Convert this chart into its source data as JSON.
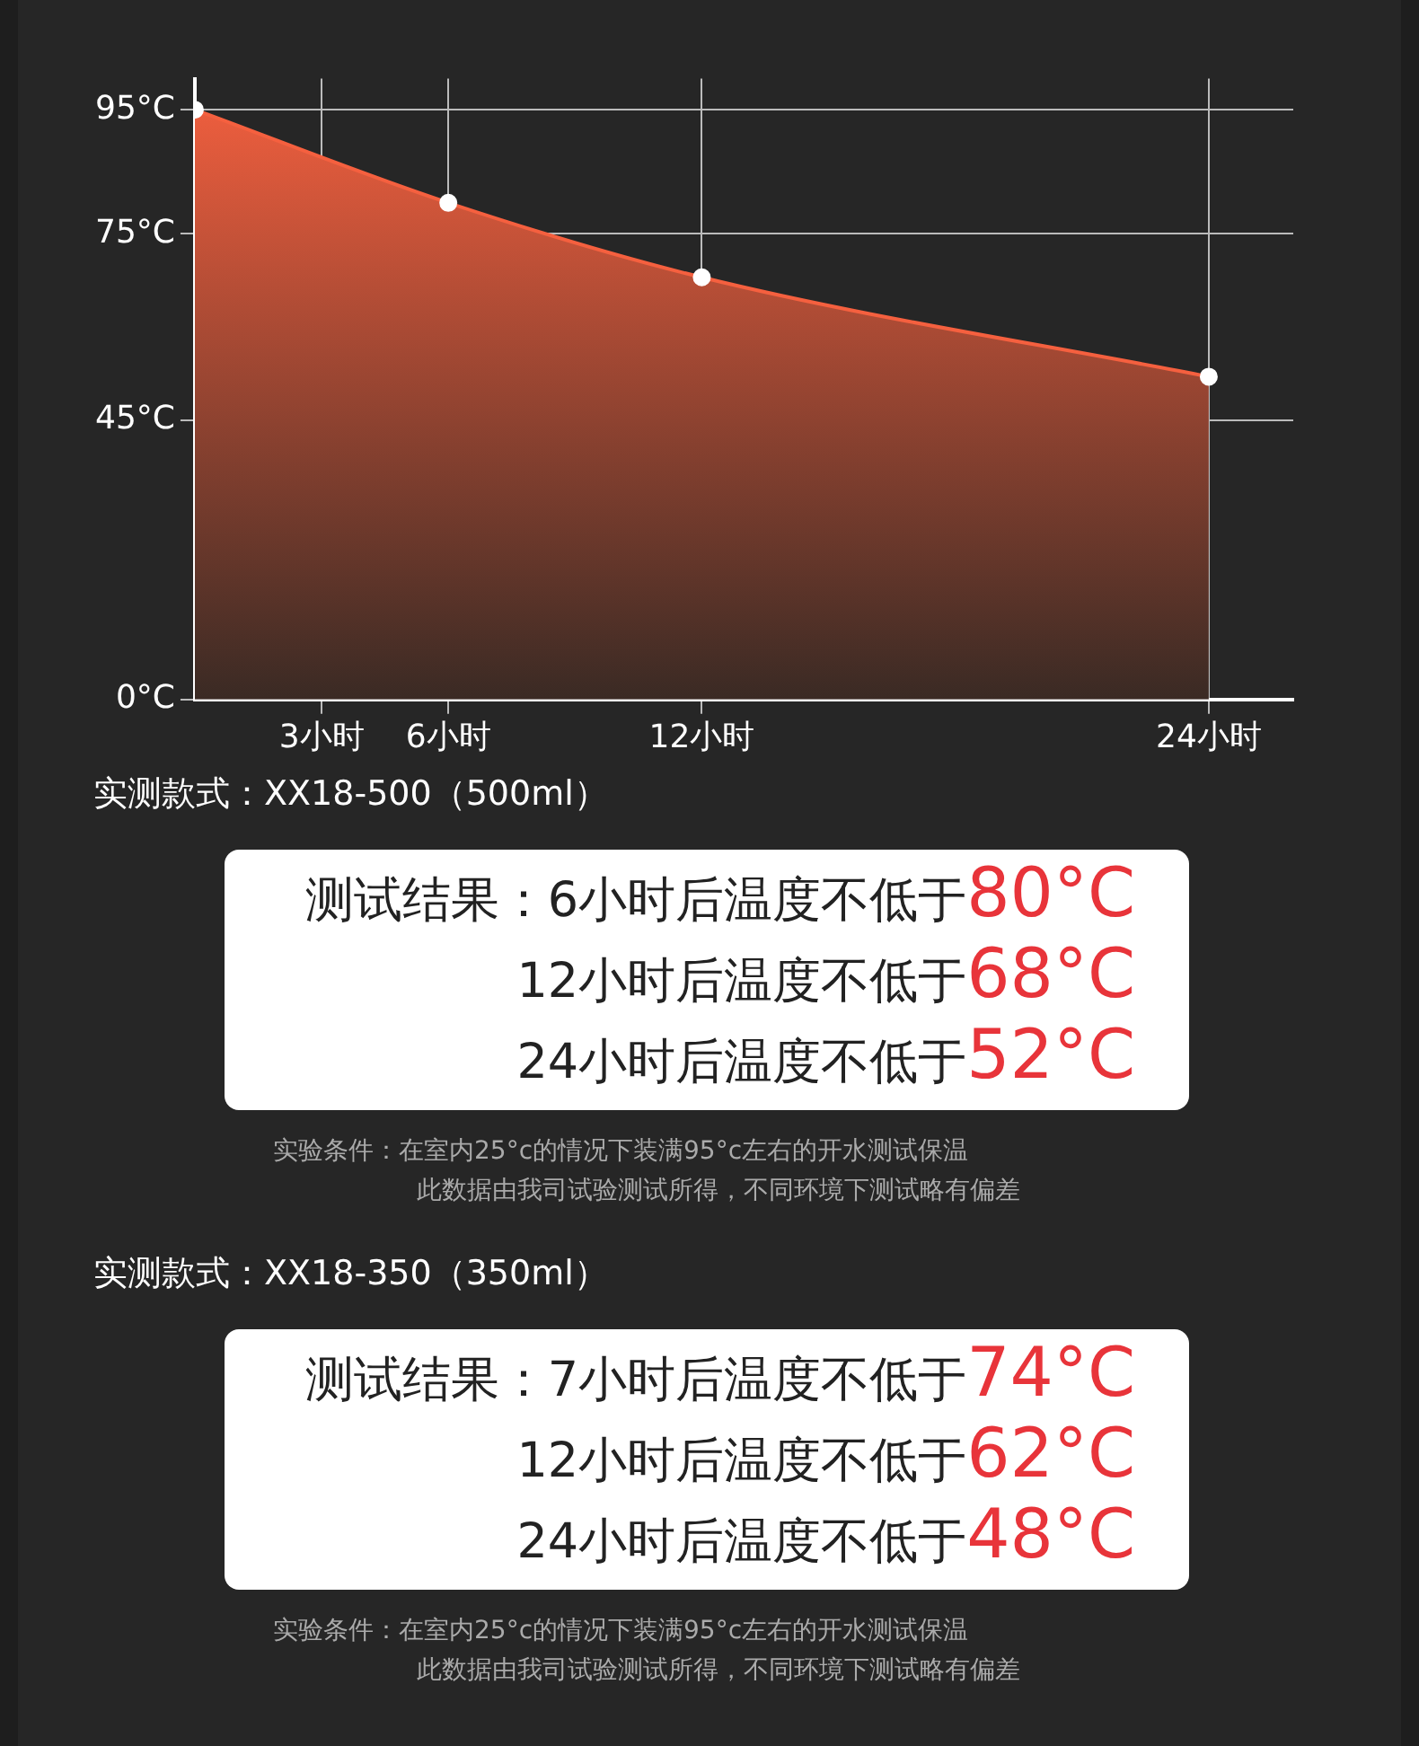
{
  "chart_data": {
    "type": "area",
    "x": [
      0,
      6,
      12,
      24
    ],
    "series": [
      {
        "color": "#f5603f",
        "values": [
          95,
          80,
          68,
          52
        ]
      }
    ],
    "xlim": [
      0,
      26
    ],
    "xticks": [
      {
        "value": 3,
        "label": "3小时"
      },
      {
        "value": 6,
        "label": "6小时"
      },
      {
        "value": 12,
        "label": "12小时"
      },
      {
        "value": 24,
        "label": "24小时"
      }
    ],
    "ylim": [
      0,
      100
    ],
    "yticks": [
      {
        "value": 0,
        "label": "0°C"
      },
      {
        "value": 45,
        "label": "45°C"
      },
      {
        "value": 75,
        "label": "75°C"
      },
      {
        "value": 95,
        "label": "95°C"
      }
    ],
    "grid": true,
    "legend": false,
    "marker": "circle",
    "annotations": [
      "实测款式：XX18-500（500ml）",
      "测试结果：6小时后温度不低于80°C",
      "12小时后温度不低于68°C",
      "24小时后温度不低于52°C",
      "实验条件：在室内25°c的情况下装满95°c左右的开水测试保温",
      "此数据由我司试验测试所得，不同环境下测试略有偏差",
      "实测款式：XX18-350（350ml）",
      "测试结果：7小时后温度不低于74°C",
      "12小时后温度不低于62°C",
      "24小时后温度不低于48°C",
      "实验条件：在室内25°c的情况下装满95°c左右的开水测试保温",
      "此数据由我司试验测试所得，不同环境下测试略有偏差"
    ]
  }
}
